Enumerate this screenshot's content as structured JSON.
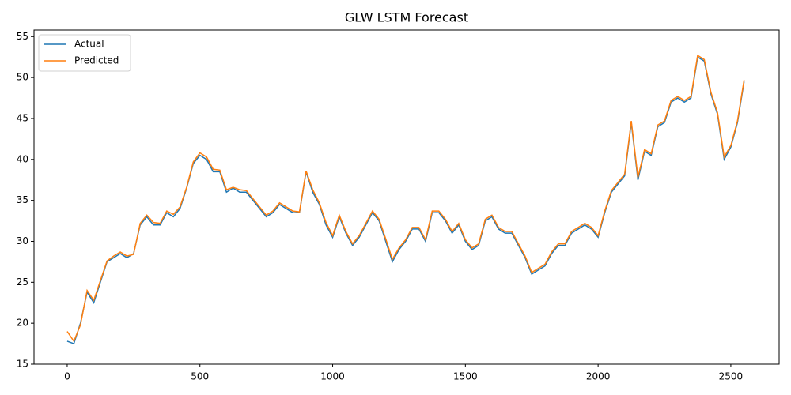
{
  "chart_data": {
    "type": "line",
    "title": "GLW LSTM Forecast",
    "x": [
      0,
      25,
      50,
      75,
      100,
      125,
      150,
      175,
      200,
      225,
      250,
      275,
      300,
      325,
      350,
      375,
      400,
      425,
      450,
      475,
      500,
      525,
      550,
      575,
      600,
      625,
      650,
      675,
      700,
      725,
      750,
      775,
      800,
      825,
      850,
      875,
      900,
      925,
      950,
      975,
      1000,
      1025,
      1050,
      1075,
      1100,
      1125,
      1150,
      1175,
      1200,
      1225,
      1250,
      1275,
      1300,
      1325,
      1350,
      1375,
      1400,
      1425,
      1450,
      1475,
      1500,
      1525,
      1550,
      1575,
      1600,
      1625,
      1650,
      1675,
      1700,
      1725,
      1750,
      1775,
      1800,
      1825,
      1850,
      1875,
      1900,
      1925,
      1950,
      1975,
      2000,
      2025,
      2050,
      2075,
      2100,
      2125,
      2150,
      2175,
      2200,
      2225,
      2250,
      2275,
      2300,
      2325,
      2350,
      2375,
      2400,
      2425,
      2450,
      2475,
      2500,
      2525,
      2550
    ],
    "series": [
      {
        "name": "Actual",
        "color": "#1f77b4",
        "values": [
          17.8,
          17.5,
          20,
          23.8,
          22.5,
          25,
          27.5,
          28,
          28.5,
          28,
          28.5,
          32,
          33,
          32,
          32,
          33.5,
          33,
          34,
          36.5,
          39.5,
          40.5,
          40,
          38.5,
          38.5,
          36,
          36.5,
          36,
          36,
          35,
          34,
          33,
          33.5,
          34.5,
          34,
          33.5,
          33.5,
          38.5,
          36,
          34.5,
          32,
          30.5,
          33,
          31,
          29.5,
          30.5,
          32,
          33.5,
          32.5,
          30,
          27.5,
          29,
          30,
          31.5,
          31.5,
          30,
          33.5,
          33.5,
          32.5,
          31,
          32,
          30,
          29,
          29.5,
          32.5,
          33,
          31.5,
          31,
          31,
          29.5,
          28,
          26,
          26.5,
          27,
          28.5,
          29.5,
          29.5,
          31,
          31.5,
          32,
          31.5,
          30.5,
          33.5,
          36,
          37,
          38,
          44.5,
          37.5,
          41,
          40.5,
          44,
          44.5,
          47,
          47.5,
          47,
          47.5,
          52.5,
          52,
          48,
          45.5,
          40,
          41.5,
          44.5,
          49.5
        ]
      },
      {
        "name": "Predicted",
        "color": "#ff7f0e",
        "values": [
          19,
          17.8,
          19.8,
          24,
          22.8,
          25.2,
          27.6,
          28.2,
          28.7,
          28.2,
          28.4,
          32.2,
          33.2,
          32.3,
          32.2,
          33.7,
          33.3,
          34.2,
          36.6,
          39.7,
          40.8,
          40.3,
          38.8,
          38.7,
          36.3,
          36.6,
          36.3,
          36.2,
          35.2,
          34.2,
          33.2,
          33.7,
          34.7,
          34.2,
          33.7,
          33.6,
          38.6,
          36.3,
          34.7,
          32.3,
          30.7,
          33.2,
          31.2,
          29.7,
          30.7,
          32.2,
          33.7,
          32.7,
          30.3,
          27.8,
          29.2,
          30.2,
          31.7,
          31.7,
          30.2,
          33.7,
          33.7,
          32.7,
          31.2,
          32.2,
          30.2,
          29.2,
          29.7,
          32.7,
          33.2,
          31.7,
          31.2,
          31.2,
          29.7,
          28.2,
          26.2,
          26.7,
          27.2,
          28.7,
          29.7,
          29.7,
          31.2,
          31.7,
          32.2,
          31.7,
          30.7,
          33.7,
          36.2,
          37.2,
          38.2,
          44.7,
          37.8,
          41.2,
          40.7,
          44.2,
          44.7,
          47.2,
          47.7,
          47.2,
          47.7,
          52.7,
          52.2,
          48.2,
          45.7,
          40.3,
          41.7,
          44.7,
          49.7
        ]
      }
    ],
    "xlim": [
      -125,
      2682
    ],
    "ylim": [
      15,
      55.8
    ],
    "xticks": [
      0,
      500,
      1000,
      1500,
      2000,
      2500
    ],
    "yticks": [
      15,
      20,
      25,
      30,
      35,
      40,
      45,
      50,
      55
    ],
    "legend": "upper left"
  }
}
